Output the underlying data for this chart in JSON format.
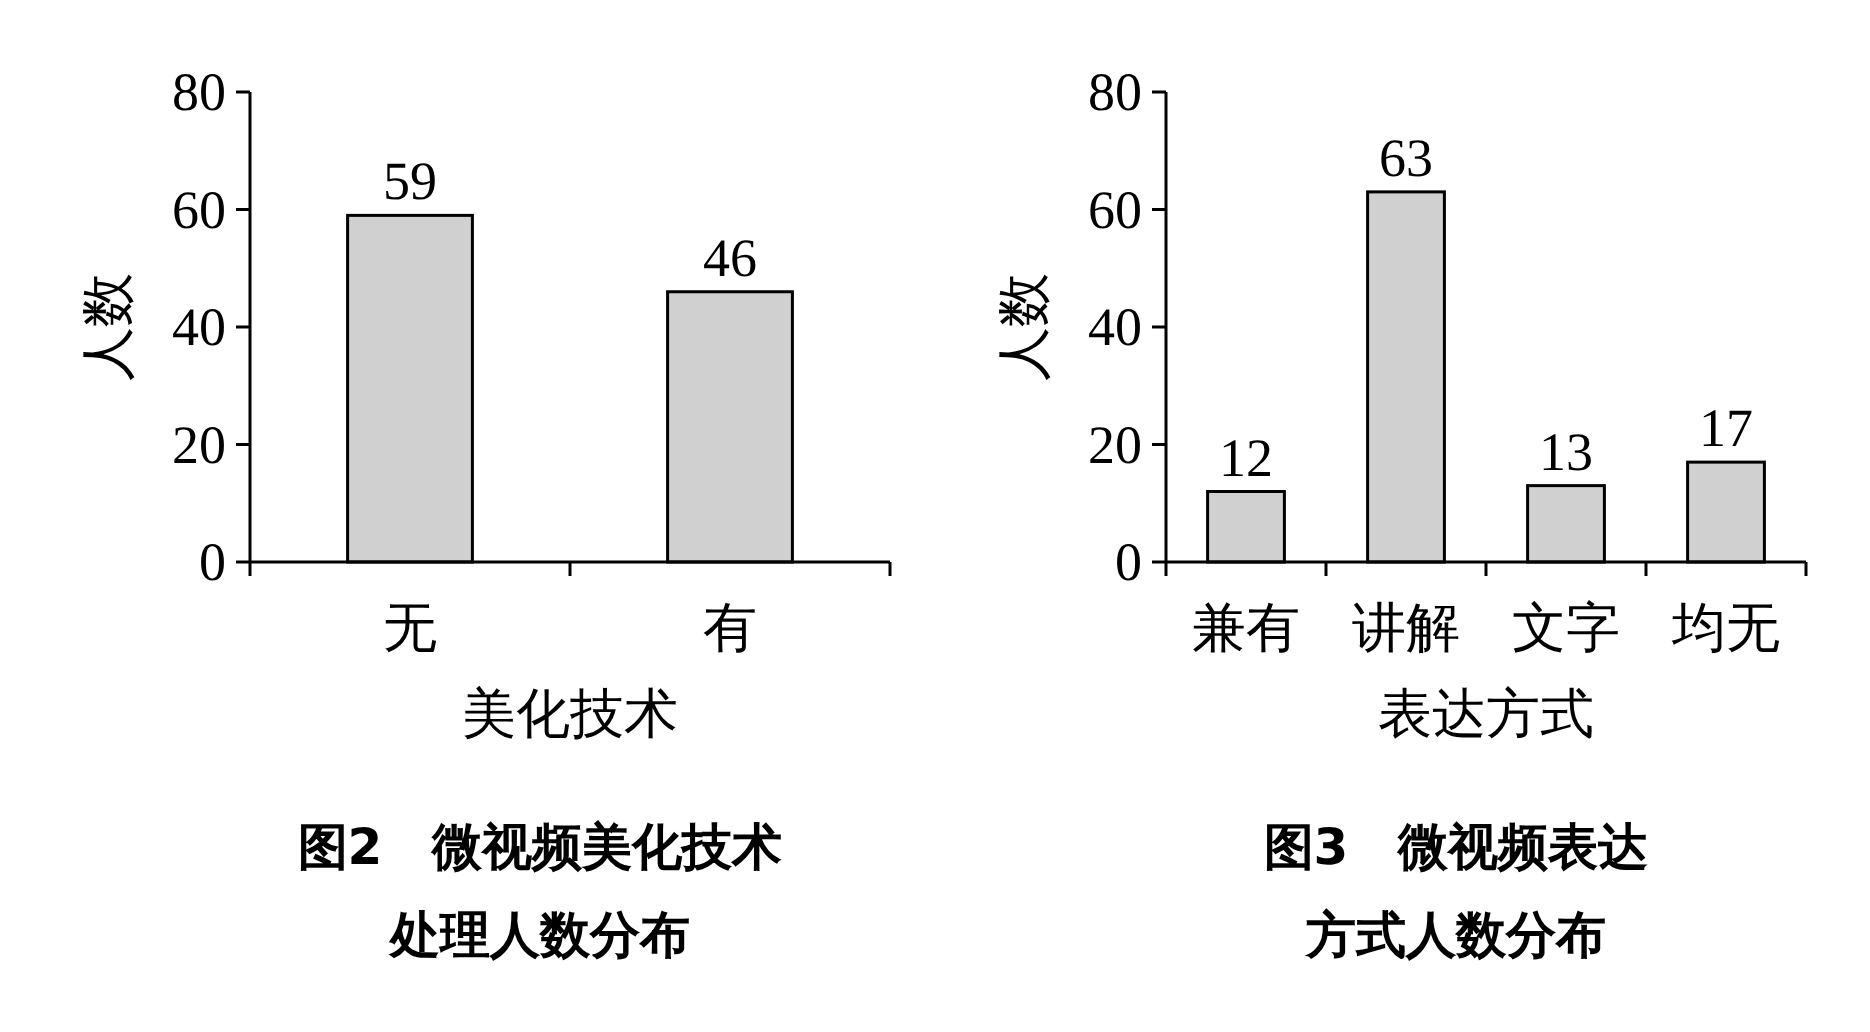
{
  "chart_data": [
    {
      "type": "bar",
      "title": "图2　微视频美化技术处理人数分布",
      "xlabel": "美化技术",
      "ylabel": "人数",
      "categories": [
        "无",
        "有"
      ],
      "values": [
        59,
        46
      ],
      "color": "#d0d0d0",
      "ylim": [
        0,
        80
      ],
      "yticks": [
        0,
        20,
        40,
        60,
        80
      ],
      "data_labels": true,
      "grid": false
    },
    {
      "type": "bar",
      "title": "图3　微视频表达方式人数分布",
      "xlabel": "表达方式",
      "ylabel": "人数",
      "categories": [
        "兼有",
        "讲解",
        "文字",
        "均无"
      ],
      "values": [
        12,
        63,
        13,
        17
      ],
      "color": "#d0d0d0",
      "ylim": [
        0,
        80
      ],
      "yticks": [
        0,
        20,
        40,
        60,
        80
      ],
      "data_labels": true,
      "grid": false
    }
  ]
}
